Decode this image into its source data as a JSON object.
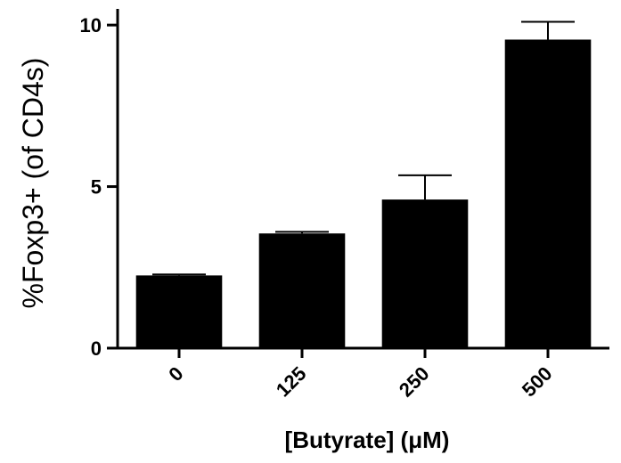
{
  "chart_data": {
    "type": "bar",
    "categories": [
      "0",
      "125",
      "250",
      "500"
    ],
    "values": [
      2.25,
      3.55,
      4.6,
      9.55
    ],
    "errors": [
      0.03,
      0.05,
      0.75,
      0.55
    ],
    "xlabel": "[Butyrate] (μM)",
    "ylabel": "%Foxp3+ (of CD4s)",
    "ylim": [
      0,
      10.5
    ],
    "yticks": [
      0,
      5,
      10
    ],
    "ytick_labels": [
      "0",
      "5",
      "10"
    ],
    "grid": false,
    "bar_color": "#000000"
  }
}
